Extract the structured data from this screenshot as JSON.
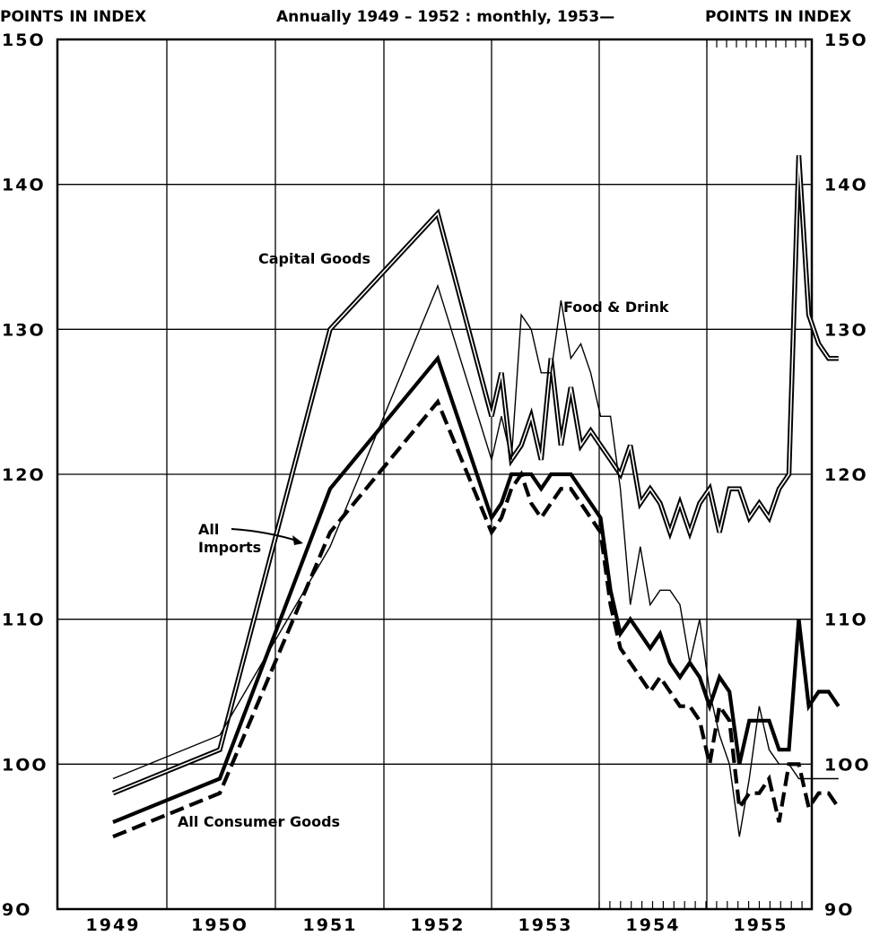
{
  "header": {
    "left_label": "POINTS IN INDEX",
    "center_label": "Annually 1949 – 1952 : monthly, 1953—",
    "right_label": "POINTS IN INDEX"
  },
  "chart_data": {
    "type": "line",
    "title": "Annually 1949 – 1952 : monthly, 1953—",
    "ylabel": "POINTS IN INDEX",
    "ylim": [
      90,
      150
    ],
    "y_ticks": [
      "9O",
      "1OO",
      "11O",
      "12O",
      "13O",
      "14O",
      "15O"
    ],
    "x_ticks": [
      "1949",
      "195O",
      "1951",
      "1952",
      "1953",
      "1954",
      "1955"
    ],
    "grid": true,
    "x": [
      "1949",
      "1950",
      "1951",
      "1952",
      "1953-01",
      "1953-02",
      "1953-03",
      "1953-04",
      "1953-05",
      "1953-06",
      "1953-07",
      "1953-08",
      "1953-09",
      "1953-10",
      "1953-11",
      "1953-12",
      "1954-01",
      "1954-02",
      "1954-03",
      "1954-04",
      "1954-05",
      "1954-06",
      "1954-07",
      "1954-08",
      "1954-09",
      "1954-10",
      "1954-11",
      "1954-12",
      "1955-01",
      "1955-02",
      "1955-03",
      "1955-04",
      "1955-05",
      "1955-06",
      "1955-07",
      "1955-08",
      "1955-09",
      "1955-10",
      "1955-11",
      "1955-12"
    ],
    "series": [
      {
        "name": "Capital Goods",
        "style": "double",
        "values": [
          98,
          101,
          130,
          138,
          124,
          127,
          121,
          122,
          124,
          121,
          128,
          122,
          126,
          122,
          123,
          122,
          121,
          120,
          122,
          118,
          119,
          118,
          116,
          118,
          116,
          118,
          119,
          116,
          119,
          119,
          117,
          118,
          117,
          119,
          120,
          142,
          131,
          129,
          128,
          128
        ]
      },
      {
        "name": "Food & Drink",
        "style": "thin",
        "values": [
          99,
          102,
          115,
          133,
          121,
          124,
          121,
          131,
          130,
          127,
          127,
          132,
          128,
          129,
          127,
          124,
          124,
          119,
          111,
          115,
          111,
          112,
          112,
          111,
          107,
          110,
          105,
          102,
          100,
          95,
          99,
          104,
          101,
          100,
          100,
          99,
          99,
          99,
          99,
          99
        ]
      },
      {
        "name": "All Imports",
        "style": "thick",
        "values": [
          96,
          99,
          119,
          128,
          117,
          118,
          120,
          120,
          120,
          119,
          120,
          120,
          120,
          119,
          118,
          117,
          112,
          109,
          110,
          109,
          108,
          109,
          107,
          106,
          107,
          106,
          104,
          106,
          105,
          100,
          103,
          103,
          103,
          101,
          101,
          110,
          104,
          105,
          105,
          104
        ]
      },
      {
        "name": "All Consumer Goods",
        "style": "dashed",
        "values": [
          95,
          98,
          116,
          125,
          116,
          117,
          119,
          120,
          118,
          117,
          118,
          119,
          119,
          118,
          117,
          116,
          111,
          108,
          107,
          106,
          105,
          106,
          105,
          104,
          104,
          103,
          100,
          104,
          103,
          97,
          98,
          98,
          99,
          96,
          100,
          100,
          97,
          98,
          98,
          97
        ]
      }
    ],
    "annotations": [
      "Capital Goods",
      "Food & Drink",
      "All Imports",
      "All Consumer Goods"
    ]
  }
}
